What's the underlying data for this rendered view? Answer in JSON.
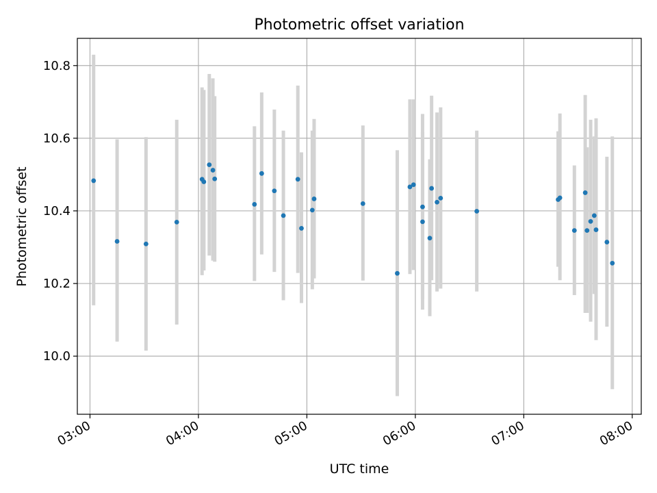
{
  "chart_data": {
    "type": "scatter",
    "title": "Photometric offset variation",
    "xlabel": "UTC time",
    "ylabel": "Photometric offset",
    "x_unit": "UTC time (HH:MM)",
    "xlim": [
      "02:53",
      "08:05"
    ],
    "ylim": [
      9.84,
      10.875
    ],
    "xticks": [
      "03:00",
      "04:00",
      "05:00",
      "06:00",
      "07:00",
      "08:00"
    ],
    "yticks": [
      "10.0",
      "10.2",
      "10.4",
      "10.6",
      "10.8"
    ],
    "grid": true,
    "legend": "none",
    "colors": {
      "point": "#1f77b4",
      "errorbar": "#d3d3d3",
      "grid": "#b0b0b0"
    },
    "series": [
      {
        "points": [
          {
            "x": "03:02",
            "y": 10.483,
            "ylow": 10.14,
            "yhigh": 10.83
          },
          {
            "x": "03:15",
            "y": 10.316,
            "ylow": 10.04,
            "yhigh": 10.597
          },
          {
            "x": "03:31",
            "y": 10.309,
            "ylow": 10.015,
            "yhigh": 10.603
          },
          {
            "x": "03:48",
            "y": 10.369,
            "ylow": 10.087,
            "yhigh": 10.651
          },
          {
            "x": "04:02",
            "y": 10.487,
            "ylow": 10.223,
            "yhigh": 10.74
          },
          {
            "x": "04:03",
            "y": 10.48,
            "ylow": 10.236,
            "yhigh": 10.733
          },
          {
            "x": "04:06",
            "y": 10.527,
            "ylow": 10.277,
            "yhigh": 10.777
          },
          {
            "x": "04:08",
            "y": 10.512,
            "ylow": 10.263,
            "yhigh": 10.765
          },
          {
            "x": "04:09",
            "y": 10.488,
            "ylow": 10.26,
            "yhigh": 10.716
          },
          {
            "x": "04:31",
            "y": 10.418,
            "ylow": 10.207,
            "yhigh": 10.633
          },
          {
            "x": "04:35",
            "y": 10.503,
            "ylow": 10.28,
            "yhigh": 10.726
          },
          {
            "x": "04:42",
            "y": 10.455,
            "ylow": 10.232,
            "yhigh": 10.679
          },
          {
            "x": "04:47",
            "y": 10.387,
            "ylow": 10.154,
            "yhigh": 10.621
          },
          {
            "x": "04:55",
            "y": 10.487,
            "ylow": 10.229,
            "yhigh": 10.745
          },
          {
            "x": "04:57",
            "y": 10.352,
            "ylow": 10.146,
            "yhigh": 10.561
          },
          {
            "x": "05:03",
            "y": 10.402,
            "ylow": 10.184,
            "yhigh": 10.621
          },
          {
            "x": "05:04",
            "y": 10.433,
            "ylow": 10.214,
            "yhigh": 10.653
          },
          {
            "x": "05:31",
            "y": 10.42,
            "ylow": 10.208,
            "yhigh": 10.635
          },
          {
            "x": "05:50",
            "y": 10.228,
            "ylow": 9.89,
            "yhigh": 10.567
          },
          {
            "x": "05:57",
            "y": 10.466,
            "ylow": 10.226,
            "yhigh": 10.707
          },
          {
            "x": "05:59",
            "y": 10.472,
            "ylow": 10.237,
            "yhigh": 10.707
          },
          {
            "x": "06:04",
            "y": 10.411,
            "ylow": 10.157,
            "yhigh": 10.667
          },
          {
            "x": "06:04",
            "y": 10.37,
            "ylow": 10.128,
            "yhigh": 10.617
          },
          {
            "x": "06:08",
            "y": 10.325,
            "ylow": 10.11,
            "yhigh": 10.542
          },
          {
            "x": "06:09",
            "y": 10.462,
            "ylow": 10.209,
            "yhigh": 10.717
          },
          {
            "x": "06:12",
            "y": 10.424,
            "ylow": 10.178,
            "yhigh": 10.671
          },
          {
            "x": "06:14",
            "y": 10.435,
            "ylow": 10.186,
            "yhigh": 10.685
          },
          {
            "x": "06:34",
            "y": 10.399,
            "ylow": 10.178,
            "yhigh": 10.621
          },
          {
            "x": "07:19",
            "y": 10.431,
            "ylow": 10.246,
            "yhigh": 10.619
          },
          {
            "x": "07:20",
            "y": 10.436,
            "ylow": 10.209,
            "yhigh": 10.668
          },
          {
            "x": "07:28",
            "y": 10.346,
            "ylow": 10.168,
            "yhigh": 10.525
          },
          {
            "x": "07:34",
            "y": 10.45,
            "ylow": 10.119,
            "yhigh": 10.719
          },
          {
            "x": "07:35",
            "y": 10.346,
            "ylow": 10.119,
            "yhigh": 10.575
          },
          {
            "x": "07:37",
            "y": 10.371,
            "ylow": 10.095,
            "yhigh": 10.651
          },
          {
            "x": "07:39",
            "y": 10.387,
            "ylow": 10.171,
            "yhigh": 10.605
          },
          {
            "x": "07:40",
            "y": 10.348,
            "ylow": 10.044,
            "yhigh": 10.655
          },
          {
            "x": "07:46",
            "y": 10.314,
            "ylow": 10.081,
            "yhigh": 10.549
          },
          {
            "x": "07:49",
            "y": 10.256,
            "ylow": 9.909,
            "yhigh": 10.605
          }
        ]
      }
    ]
  }
}
